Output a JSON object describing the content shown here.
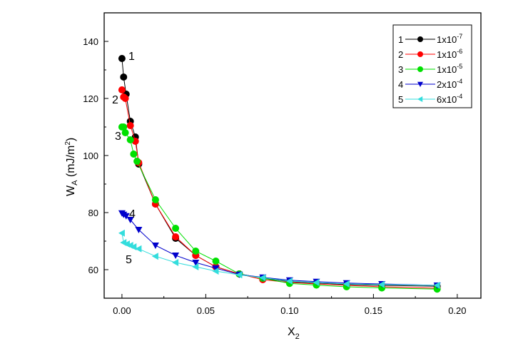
{
  "chart_data": {
    "type": "line",
    "title": "",
    "xlabel": "X",
    "xlabel_sub": "2",
    "ylabel": "W",
    "ylabel_sub": "A",
    "ylabel_unit": " (mJ/m",
    "ylabel_unit_sup": "2",
    "ylabel_unit_close": ")",
    "xlim": [
      -0.0106,
      0.2141
    ],
    "ylim": [
      50,
      150
    ],
    "xticks": [
      0.0,
      0.05,
      0.1,
      0.15,
      0.2
    ],
    "xtick_labels": [
      "0.00",
      "0.05",
      "0.10",
      "0.15",
      "0.20"
    ],
    "yticks": [
      60,
      80,
      100,
      120,
      140
    ],
    "ytick_labels": [
      "60",
      "80",
      "100",
      "120",
      "140"
    ],
    "legend_position": "top-right",
    "grid": false,
    "series": [
      {
        "name": "1",
        "value_base": "1x10",
        "value_exp": "-7",
        "color": "#000000",
        "marker": "circle",
        "x": [
          0,
          0.001,
          0.0025,
          0.005,
          0.008,
          0.01,
          0.02,
          0.032,
          0.044,
          0.056,
          0.07,
          0.084,
          0.1,
          0.116,
          0.134,
          0.155,
          0.188
        ],
        "y": [
          134,
          127.5,
          121.5,
          112,
          106.5,
          97,
          83,
          71,
          65,
          61,
          58.5,
          57,
          55.8,
          55.3,
          54.8,
          54.5,
          54.2
        ]
      },
      {
        "name": "2",
        "value_base": "1x10",
        "value_exp": "-6",
        "color": "#ff0000",
        "marker": "circle",
        "x": [
          0,
          0.001,
          0.002,
          0.005,
          0.008,
          0.01,
          0.02,
          0.032,
          0.044,
          0.056,
          0.07,
          0.084,
          0.1,
          0.116,
          0.134,
          0.155,
          0.188
        ],
        "y": [
          123,
          120.5,
          120,
          110.5,
          105,
          97.5,
          83,
          71.5,
          65,
          61,
          58.5,
          56.5,
          55.5,
          55,
          54.5,
          54,
          53.5
        ]
      },
      {
        "name": "3",
        "value_base": "1x10",
        "value_exp": "-5",
        "color": "#00e000",
        "marker": "circle",
        "x": [
          0,
          0.001,
          0.002,
          0.005,
          0.007,
          0.009,
          0.02,
          0.032,
          0.044,
          0.056,
          0.07,
          0.084,
          0.1,
          0.116,
          0.134,
          0.155,
          0.188
        ],
        "y": [
          110,
          110,
          108,
          105.5,
          100.5,
          98,
          84.5,
          74.5,
          66.5,
          63,
          58.5,
          57,
          55.2,
          54.6,
          54,
          53.6,
          53.2
        ]
      },
      {
        "name": "4",
        "value_base": "2x10",
        "value_exp": "-4",
        "color": "#0000cc",
        "marker": "triangle-down",
        "x": [
          0,
          0.001,
          0.0025,
          0.005,
          0.01,
          0.02,
          0.032,
          0.044,
          0.056,
          0.07,
          0.084,
          0.1,
          0.116,
          0.134,
          0.155,
          0.188
        ],
        "y": [
          79.8,
          79.3,
          78.8,
          77.5,
          74,
          68.5,
          65,
          62.5,
          60.5,
          58.3,
          57.3,
          56.3,
          55.8,
          55.3,
          55,
          54.5
        ]
      },
      {
        "name": "5",
        "value_base": "6x10",
        "value_exp": "-4",
        "color": "#33dddd",
        "marker": "triangle-left",
        "x": [
          0,
          0.001,
          0.003,
          0.005,
          0.007,
          0.01,
          0.02,
          0.032,
          0.044,
          0.056,
          0.07,
          0.084,
          0.1,
          0.116,
          0.134,
          0.155,
          0.188
        ],
        "y": [
          72.8,
          69.5,
          69,
          68.5,
          68,
          67.3,
          64.7,
          62.5,
          61,
          59.5,
          58.2,
          57.2,
          56,
          55.5,
          55,
          54.8,
          54.5
        ]
      }
    ],
    "annotations": [
      "1",
      "2",
      "3",
      "4",
      "5"
    ]
  }
}
